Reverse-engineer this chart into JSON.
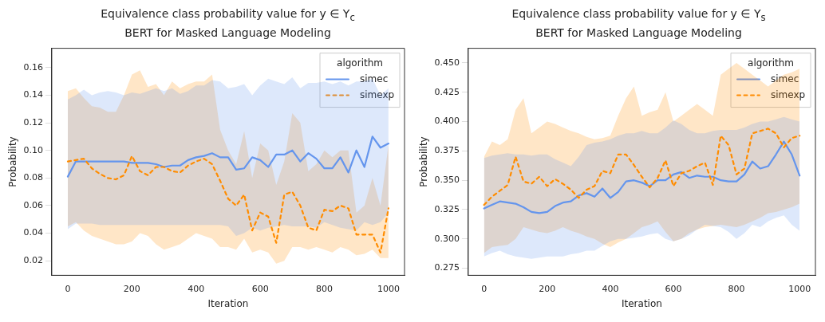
{
  "chart_data": [
    {
      "type": "line",
      "title": "Equivalence class probability value for y ∈ Y$_{c}$",
      "subtitle": "BERT for Masked Language Modeling",
      "xlabel": "Iteration",
      "ylabel": "Probability",
      "legend_title": "algorithm",
      "legend": "top right",
      "grid": false,
      "x": [
        0,
        25,
        50,
        75,
        100,
        125,
        150,
        175,
        200,
        225,
        250,
        275,
        300,
        325,
        350,
        375,
        400,
        425,
        450,
        475,
        500,
        525,
        550,
        575,
        600,
        625,
        650,
        675,
        700,
        725,
        750,
        775,
        800,
        825,
        850,
        875,
        900,
        925,
        950,
        975,
        1000
      ],
      "xlim": [
        -50,
        1050
      ],
      "xticks": [
        0,
        200,
        400,
        600,
        800,
        1000
      ],
      "ylim": [
        0.0095,
        0.174
      ],
      "yticks": [
        0.02,
        0.04,
        0.06,
        0.08,
        {
          "value": 0.1,
          "label": "0.10"
        },
        0.12,
        0.14,
        0.16
      ],
      "series": [
        {
          "name": "simec",
          "color": "#6495ed",
          "line_style": "solid",
          "values": [
            0.081,
            0.092,
            0.092,
            0.092,
            0.092,
            0.092,
            0.092,
            0.092,
            0.091,
            0.091,
            0.091,
            0.09,
            0.088,
            0.089,
            0.089,
            0.093,
            0.095,
            0.096,
            0.098,
            0.095,
            0.095,
            0.086,
            0.087,
            0.095,
            0.093,
            0.088,
            0.097,
            0.097,
            0.1,
            0.092,
            0.098,
            0.094,
            0.087,
            0.087,
            0.095,
            0.084,
            0.1,
            0.088,
            0.11,
            0.102,
            0.105
          ],
          "lower": [
            0.043,
            0.047,
            0.047,
            0.047,
            0.046,
            0.046,
            0.046,
            0.046,
            0.046,
            0.046,
            0.046,
            0.046,
            0.046,
            0.046,
            0.046,
            0.046,
            0.046,
            0.046,
            0.046,
            0.046,
            0.045,
            0.038,
            0.04,
            0.044,
            0.042,
            0.044,
            0.045,
            0.046,
            0.045,
            0.045,
            0.045,
            0.044,
            0.048,
            0.046,
            0.044,
            0.043,
            0.042,
            0.048,
            0.046,
            0.048,
            0.055
          ],
          "upper": [
            0.137,
            0.14,
            0.144,
            0.14,
            0.142,
            0.143,
            0.142,
            0.14,
            0.142,
            0.141,
            0.143,
            0.145,
            0.143,
            0.145,
            0.141,
            0.143,
            0.147,
            0.147,
            0.151,
            0.15,
            0.145,
            0.146,
            0.148,
            0.14,
            0.147,
            0.152,
            0.15,
            0.148,
            0.153,
            0.145,
            0.149,
            0.149,
            0.15,
            0.148,
            0.15,
            0.147,
            0.15,
            0.15,
            0.152,
            0.14,
            0.145
          ]
        },
        {
          "name": "simexp",
          "color": "#ff8c00",
          "line_style": "dashed",
          "values": [
            0.092,
            0.093,
            0.094,
            0.087,
            0.083,
            0.08,
            0.079,
            0.082,
            0.096,
            0.085,
            0.082,
            0.088,
            0.088,
            0.085,
            0.084,
            0.089,
            0.092,
            0.094,
            0.09,
            0.078,
            0.065,
            0.06,
            0.068,
            0.042,
            0.055,
            0.052,
            0.033,
            0.068,
            0.07,
            0.06,
            0.044,
            0.042,
            0.057,
            0.056,
            0.06,
            0.058,
            0.039,
            0.039,
            0.039,
            0.026,
            0.058
          ],
          "lower": [
            0.045,
            0.048,
            0.042,
            0.038,
            0.036,
            0.034,
            0.032,
            0.032,
            0.034,
            0.04,
            0.038,
            0.032,
            0.028,
            0.03,
            0.032,
            0.036,
            0.04,
            0.038,
            0.036,
            0.03,
            0.03,
            0.028,
            0.036,
            0.026,
            0.028,
            0.026,
            0.018,
            0.02,
            0.03,
            0.03,
            0.028,
            0.03,
            0.028,
            0.026,
            0.03,
            0.028,
            0.024,
            0.025,
            0.028,
            0.022,
            0.022
          ],
          "upper": [
            0.143,
            0.145,
            0.138,
            0.132,
            0.131,
            0.128,
            0.128,
            0.14,
            0.155,
            0.158,
            0.146,
            0.148,
            0.14,
            0.15,
            0.145,
            0.148,
            0.15,
            0.15,
            0.155,
            0.115,
            0.1,
            0.09,
            0.114,
            0.08,
            0.105,
            0.1,
            0.075,
            0.092,
            0.127,
            0.12,
            0.085,
            0.09,
            0.1,
            0.095,
            0.1,
            0.1,
            0.055,
            0.06,
            0.08,
            0.06,
            0.104
          ]
        }
      ]
    },
    {
      "type": "line",
      "title": "Equivalence class probability value for y ∈ Y$_{s}$",
      "subtitle": "BERT for Masked Language Modeling",
      "xlabel": "Iteration",
      "ylabel": "Probability",
      "legend_title": "algorithm",
      "legend": "top right",
      "grid": false,
      "x": [
        0,
        25,
        50,
        75,
        100,
        125,
        150,
        175,
        200,
        225,
        250,
        275,
        300,
        325,
        350,
        375,
        400,
        425,
        450,
        475,
        500,
        525,
        550,
        575,
        600,
        625,
        650,
        675,
        700,
        725,
        750,
        775,
        800,
        825,
        850,
        875,
        900,
        925,
        950,
        975,
        1000
      ],
      "xlim": [
        -50,
        1050
      ],
      "xticks": [
        0,
        200,
        400,
        600,
        800,
        1000
      ],
      "ylim": [
        0.269,
        0.4625
      ],
      "yticks": [
        0.275,
        {
          "value": 0.3,
          "label": "0.300"
        },
        0.325,
        {
          "value": 0.35,
          "label": "0.350"
        },
        0.375,
        {
          "value": 0.4,
          "label": "0.400"
        },
        0.425,
        {
          "value": 0.45,
          "label": "0.450"
        }
      ],
      "series": [
        {
          "name": "simec",
          "color": "#6495ed",
          "line_style": "solid",
          "values": [
            0.326,
            0.329,
            0.332,
            0.331,
            0.33,
            0.327,
            0.323,
            0.322,
            0.323,
            0.328,
            0.331,
            0.332,
            0.337,
            0.339,
            0.336,
            0.343,
            0.335,
            0.34,
            0.349,
            0.35,
            0.348,
            0.345,
            0.35,
            0.35,
            0.355,
            0.357,
            0.352,
            0.354,
            0.353,
            0.353,
            0.35,
            0.349,
            0.349,
            0.355,
            0.366,
            0.36,
            0.362,
            0.372,
            0.383,
            0.372,
            0.354
          ],
          "lower": [
            0.285,
            0.288,
            0.29,
            0.287,
            0.285,
            0.284,
            0.283,
            0.284,
            0.285,
            0.285,
            0.285,
            0.287,
            0.288,
            0.29,
            0.29,
            0.294,
            0.298,
            0.3,
            0.3,
            0.301,
            0.302,
            0.304,
            0.305,
            0.3,
            0.298,
            0.3,
            0.303,
            0.308,
            0.312,
            0.311,
            0.31,
            0.306,
            0.3,
            0.305,
            0.312,
            0.31,
            0.315,
            0.318,
            0.32,
            0.312,
            0.307
          ],
          "upper": [
            0.369,
            0.371,
            0.372,
            0.373,
            0.372,
            0.372,
            0.371,
            0.372,
            0.372,
            0.368,
            0.365,
            0.362,
            0.37,
            0.38,
            0.382,
            0.383,
            0.385,
            0.388,
            0.39,
            0.39,
            0.392,
            0.39,
            0.39,
            0.395,
            0.401,
            0.398,
            0.393,
            0.39,
            0.39,
            0.392,
            0.393,
            0.393,
            0.393,
            0.395,
            0.398,
            0.4,
            0.4,
            0.402,
            0.404,
            0.402,
            0.4
          ]
        },
        {
          "name": "simexp",
          "color": "#ff8c00",
          "line_style": "dashed",
          "values": [
            0.329,
            0.336,
            0.341,
            0.346,
            0.37,
            0.349,
            0.347,
            0.353,
            0.345,
            0.351,
            0.347,
            0.342,
            0.335,
            0.342,
            0.345,
            0.358,
            0.356,
            0.372,
            0.372,
            0.363,
            0.353,
            0.344,
            0.352,
            0.367,
            0.345,
            0.356,
            0.358,
            0.362,
            0.365,
            0.346,
            0.388,
            0.38,
            0.355,
            0.36,
            0.39,
            0.392,
            0.394,
            0.39,
            0.378,
            0.386,
            0.388
          ],
          "lower": [
            0.288,
            0.293,
            0.294,
            0.295,
            0.3,
            0.31,
            0.308,
            0.306,
            0.305,
            0.307,
            0.31,
            0.307,
            0.305,
            0.302,
            0.3,
            0.296,
            0.293,
            0.297,
            0.3,
            0.305,
            0.31,
            0.312,
            0.315,
            0.306,
            0.298,
            0.3,
            0.305,
            0.308,
            0.31,
            0.311,
            0.312,
            0.311,
            0.31,
            0.312,
            0.315,
            0.318,
            0.322,
            0.323,
            0.325,
            0.327,
            0.33
          ],
          "upper": [
            0.37,
            0.383,
            0.38,
            0.385,
            0.41,
            0.42,
            0.39,
            0.395,
            0.4,
            0.398,
            0.395,
            0.392,
            0.39,
            0.387,
            0.385,
            0.386,
            0.388,
            0.405,
            0.42,
            0.43,
            0.405,
            0.408,
            0.41,
            0.425,
            0.4,
            0.405,
            0.41,
            0.415,
            0.41,
            0.405,
            0.44,
            0.445,
            0.45,
            0.445,
            0.44,
            0.435,
            0.43,
            0.435,
            0.44,
            0.442,
            0.445
          ]
        }
      ]
    }
  ]
}
